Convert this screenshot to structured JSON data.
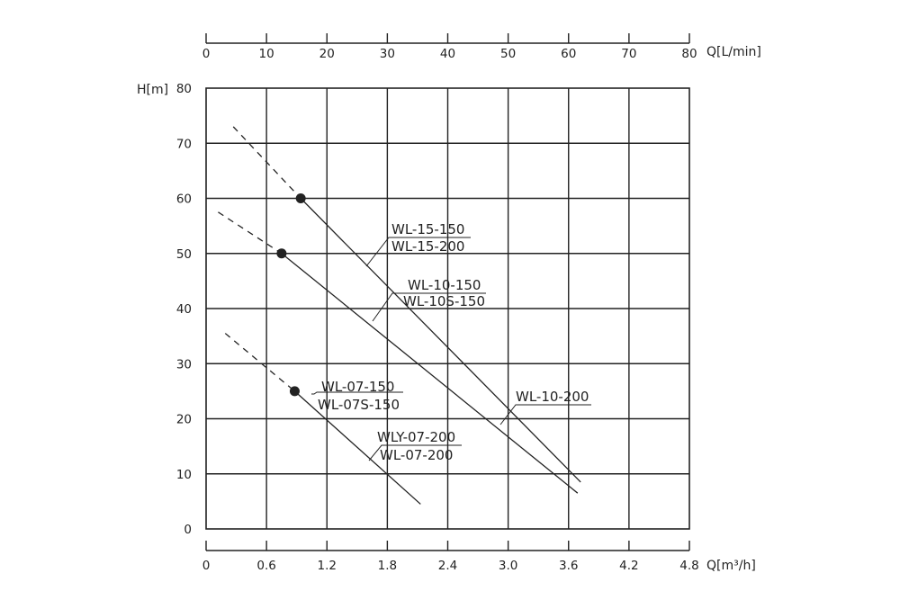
{
  "chart_data": {
    "type": "line",
    "title": "",
    "bottom_axis": {
      "label": "Q[m³/h]",
      "range": [
        0,
        4.8
      ],
      "ticks": [
        0,
        0.6,
        1.2,
        1.8,
        2.4,
        3.0,
        3.6,
        4.2,
        4.8
      ],
      "tick_labels": [
        "0",
        "0.6",
        "1.2",
        "1.8",
        "2.4",
        "3.0",
        "3.6",
        "4.2",
        "4.8"
      ]
    },
    "top_axis": {
      "label": "Q[L/min]",
      "range": [
        0,
        80
      ],
      "tick_labels": [
        "0",
        "10",
        "20",
        "30",
        "40",
        "50",
        "60",
        "70",
        "80"
      ]
    },
    "y_axis": {
      "label": "H[m]",
      "range": [
        0,
        80
      ],
      "ticks": [
        0,
        10,
        20,
        30,
        40,
        50,
        60,
        70,
        80
      ],
      "tick_labels": [
        "0",
        "10",
        "20",
        "30",
        "40",
        "50",
        "60",
        "70",
        "80"
      ]
    },
    "grid": true,
    "series": [
      {
        "labels": [
          "WL-15-150",
          "WL-15-200"
        ],
        "dashed_points": [
          [
            0.27,
            73
          ],
          [
            0.94,
            60
          ]
        ],
        "marker": [
          0.94,
          60
        ],
        "solid_points": [
          [
            0.94,
            60
          ],
          [
            3.72,
            8.5
          ]
        ]
      },
      {
        "labels": [
          "WL-10-150",
          "WL-10S-150",
          "WL-10-200"
        ],
        "dashed_points": [
          [
            0.12,
            57.5
          ],
          [
            0.75,
            50
          ]
        ],
        "marker": [
          0.75,
          50
        ],
        "solid_points": [
          [
            0.75,
            50
          ],
          [
            3.69,
            6.5
          ]
        ]
      },
      {
        "labels": [
          "WL-07-150",
          "WL-07S-150",
          "WLY-07-200",
          "WL-07-200"
        ],
        "dashed_points": [
          [
            0.19,
            35.5
          ],
          [
            0.88,
            25
          ]
        ],
        "marker": [
          0.88,
          25
        ],
        "solid_points": [
          [
            0.88,
            25
          ],
          [
            2.13,
            4.5
          ]
        ]
      }
    ]
  }
}
